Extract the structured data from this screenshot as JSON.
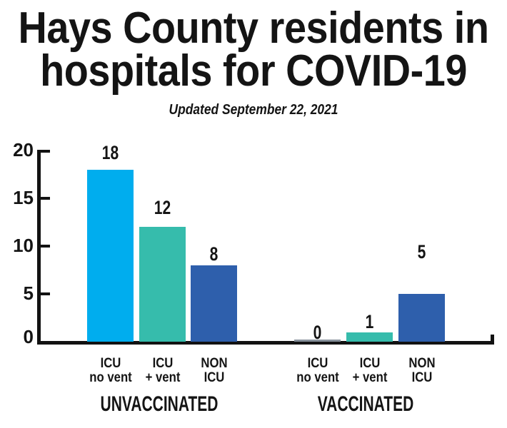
{
  "header": {
    "title": "Hays County residents in hospitals for COVID-19",
    "title_lines": [
      "Hays County residents in",
      "hospitals for COVID-19"
    ],
    "subtitle": "Updated September 22, 2021"
  },
  "colors": {
    "background": "#FFFFFF",
    "ink": "#141414",
    "axis": "#121212",
    "cyan": "#00ADEE",
    "teal": "#36BCAC",
    "blue": "#2E5FAC",
    "zero_gray": "#87919B"
  },
  "chart_data": {
    "type": "bar",
    "title": "Hays County residents in hospitals for COVID-19",
    "subtitle": "Updated September 22, 2021",
    "xlabel": "",
    "ylabel": "",
    "ylim": [
      0,
      20
    ],
    "yticks": [
      20,
      15,
      10,
      5,
      0
    ],
    "grid": false,
    "legend": "none",
    "groups": [
      {
        "label": "UNVACCINATED",
        "bars": [
          {
            "category": "ICU no vent",
            "category_lines": [
              "ICU",
              "no vent"
            ],
            "value": 18,
            "color": "#00ADEE"
          },
          {
            "category": "ICU + vent",
            "category_lines": [
              "ICU",
              "+ vent"
            ],
            "value": 12,
            "color": "#36BCAC"
          },
          {
            "category": "NON ICU",
            "category_lines": [
              "NON",
              "ICU"
            ],
            "value": 8,
            "color": "#2E5FAC"
          }
        ]
      },
      {
        "label": "VACCINATED",
        "bars": [
          {
            "category": "ICU no vent",
            "category_lines": [
              "ICU",
              "no vent"
            ],
            "value": 0,
            "color": "#87919B"
          },
          {
            "category": "ICU + vent",
            "category_lines": [
              "ICU",
              "+ vent"
            ],
            "value": 1,
            "color": "#36BCAC"
          },
          {
            "category": "NON ICU",
            "category_lines": [
              "NON",
              "ICU"
            ],
            "value": 5,
            "color": "#2E5FAC"
          }
        ]
      }
    ]
  }
}
